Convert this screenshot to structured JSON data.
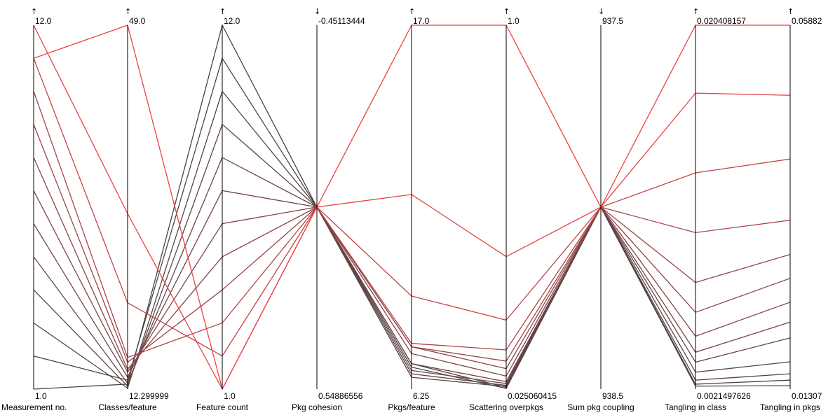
{
  "chart_data": {
    "type": "parallel_coordinates",
    "axes": [
      {
        "name": "Measurement no.",
        "top": "12.0",
        "bottom": "1.0",
        "direction": "↑"
      },
      {
        "name": "Classes/feature",
        "top": "49.0",
        "bottom": "12.299999",
        "direction": "↑"
      },
      {
        "name": "Feature count",
        "top": "12.0",
        "bottom": "1.0",
        "direction": "↑"
      },
      {
        "name": "Pkg cohesion",
        "top": "-0.45113444",
        "bottom": "0.54886556",
        "direction": "↓"
      },
      {
        "name": "Pkgs/feature",
        "top": "17.0",
        "bottom": "6.25",
        "direction": "↑"
      },
      {
        "name": "Scattering overpkgs",
        "top": "1.0",
        "bottom": "0.025060415",
        "direction": "↑"
      },
      {
        "name": "Sum pkg coupling",
        "top": "937.5",
        "bottom": "938.5",
        "direction": "↓"
      },
      {
        "name": "Tangling in class",
        "top": "0.020408157",
        "bottom": "0.0021497626",
        "direction": "↑"
      },
      {
        "name": "Tangling in pkgs",
        "top": "0.05882",
        "bottom": "0.01307",
        "direction": "↑"
      }
    ],
    "records": [
      {
        "values": [
          1.0,
          12.8,
          12.0,
          0.0487,
          6.9,
          0.027,
          938.0,
          0.0023,
          0.0135
        ],
        "color": "#444444"
      },
      {
        "values": [
          2.0,
          13.2,
          11.0,
          0.0487,
          7.0,
          0.03,
          938.0,
          0.0024,
          0.0142
        ],
        "color": "#4d4444"
      },
      {
        "values": [
          3.0,
          12.4,
          10.0,
          0.0487,
          6.6,
          0.032,
          938.0,
          0.0026,
          0.015
        ],
        "color": "#564445"
      },
      {
        "values": [
          4.0,
          12.6,
          9.0,
          0.0487,
          6.7,
          0.035,
          938.0,
          0.003,
          0.0165
        ],
        "color": "#604445"
      },
      {
        "values": [
          5.0,
          12.9,
          8.0,
          0.0487,
          6.8,
          0.04,
          938.0,
          0.0035,
          0.0195
        ],
        "color": "#6a4446"
      },
      {
        "values": [
          6.0,
          13.5,
          7.0,
          0.0487,
          7.0,
          0.045,
          938.0,
          0.004,
          0.0215
        ],
        "color": "#754446"
      },
      {
        "values": [
          7.0,
          14.0,
          6.0,
          0.0487,
          7.3,
          0.06,
          938.0,
          0.0048,
          0.024
        ],
        "color": "#804446"
      },
      {
        "values": [
          8.0,
          14.3,
          5.0,
          0.0487,
          7.5,
          0.08,
          938.0,
          0.006,
          0.027
        ],
        "color": "#8c4446"
      },
      {
        "values": [
          9.0,
          15.0,
          4.0,
          0.0487,
          7.5,
          0.1,
          938.0,
          0.0075,
          0.03
        ],
        "color": "#9a4446"
      },
      {
        "values": [
          10.0,
          15.5,
          3.0,
          0.0487,
          7.6,
          0.13,
          938.0,
          0.01,
          0.0343
        ],
        "color": "#ac4446"
      },
      {
        "values": [
          11.0,
          21.0,
          2.0,
          0.0487,
          9.0,
          0.21,
          938.0,
          0.013,
          0.042
        ],
        "color": "#c24446"
      },
      {
        "values": [
          12.0,
          30.0,
          1.0,
          0.0487,
          12.0,
          0.38,
          938.0,
          0.017,
          0.05
        ],
        "color": "#e84446"
      },
      {
        "values": [
          11.0,
          49.0,
          1.0,
          0.0487,
          17.0,
          1.0,
          938.0,
          0.020408157,
          0.05882
        ],
        "color": "#f04040"
      }
    ]
  }
}
